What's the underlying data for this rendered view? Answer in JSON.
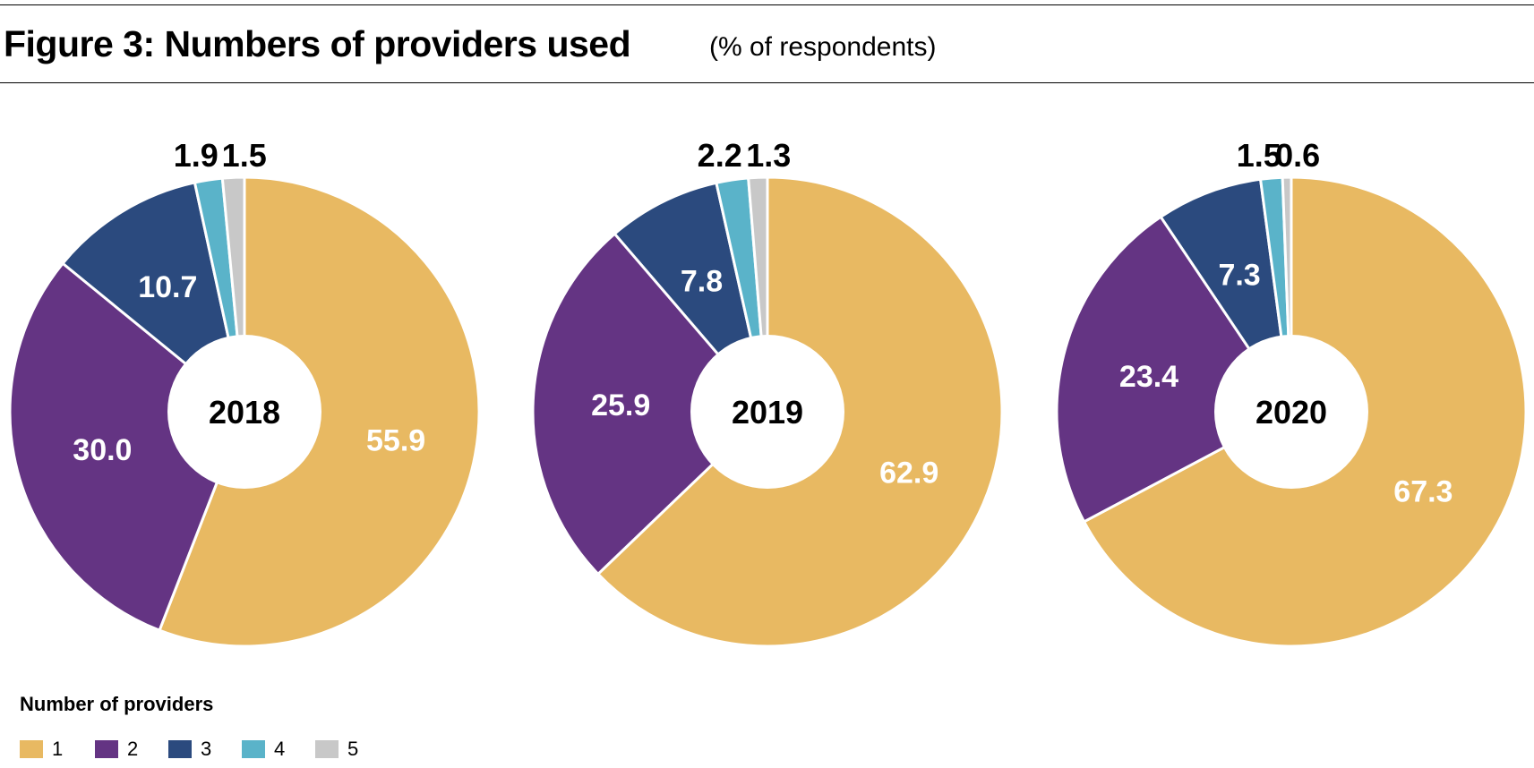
{
  "title": "Figure 3: Numbers of providers used",
  "subtitle": "(% of respondents)",
  "legend": {
    "title": "Number of providers",
    "items": [
      {
        "label": "1",
        "color": "#e8b962"
      },
      {
        "label": "2",
        "color": "#643483"
      },
      {
        "label": "3",
        "color": "#2b4a7e"
      },
      {
        "label": "4",
        "color": "#5ab3c9"
      },
      {
        "label": "5",
        "color": "#c8c8c8"
      }
    ]
  },
  "chart_data": [
    {
      "type": "pie",
      "center_label": "2018",
      "categories": [
        "1",
        "2",
        "3",
        "4",
        "5"
      ],
      "values": [
        55.9,
        30.0,
        10.7,
        1.9,
        1.5
      ],
      "labels": [
        "55.9",
        "30.0",
        "10.7",
        "1.9",
        "1.5"
      ]
    },
    {
      "type": "pie",
      "center_label": "2019",
      "categories": [
        "1",
        "2",
        "3",
        "4",
        "5"
      ],
      "values": [
        62.9,
        25.9,
        7.8,
        2.2,
        1.3
      ],
      "labels": [
        "62.9",
        "25.9",
        "7.8",
        "2.2",
        "1.3"
      ]
    },
    {
      "type": "pie",
      "center_label": "2020",
      "categories": [
        "1",
        "2",
        "3",
        "4",
        "5"
      ],
      "values": [
        67.3,
        23.4,
        7.3,
        1.5,
        0.6
      ],
      "labels": [
        "67.3",
        "23.4",
        "7.3",
        "1.5",
        "0.6"
      ]
    }
  ]
}
